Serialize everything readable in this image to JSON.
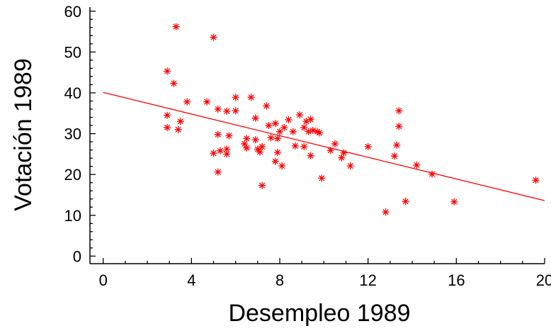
{
  "chart_data": {
    "type": "scatter",
    "title": "",
    "xlabel": "Desempleo 1989",
    "ylabel": "Votación 1989",
    "xlim": [
      -0.6,
      20
    ],
    "ylim": [
      -1.5,
      61
    ],
    "xticks": [
      0,
      4,
      8,
      12,
      16,
      20
    ],
    "yticks": [
      0,
      10,
      20,
      30,
      40,
      50,
      60
    ],
    "x_minor_step": 1,
    "y_minor_step": 2,
    "grid": false,
    "marker": "asterisk",
    "color": "#ff0000",
    "trendline": {
      "x": [
        0,
        20
      ],
      "y": [
        40.1,
        13.6
      ]
    },
    "points": [
      [
        3.3,
        56.2
      ],
      [
        5.0,
        53.6
      ],
      [
        2.9,
        45.3
      ],
      [
        3.2,
        42.3
      ],
      [
        3.8,
        37.8
      ],
      [
        4.7,
        37.8
      ],
      [
        6.0,
        38.9
      ],
      [
        6.7,
        38.9
      ],
      [
        7.4,
        36.8
      ],
      [
        5.2,
        36.0
      ],
      [
        5.6,
        35.5
      ],
      [
        6.0,
        35.6
      ],
      [
        2.9,
        34.5
      ],
      [
        6.9,
        33.8
      ],
      [
        8.4,
        33.4
      ],
      [
        8.9,
        34.6
      ],
      [
        9.2,
        33.0
      ],
      [
        9.4,
        33.5
      ],
      [
        3.5,
        33.0
      ],
      [
        2.9,
        31.5
      ],
      [
        3.4,
        31.0
      ],
      [
        7.5,
        32.0
      ],
      [
        7.8,
        32.5
      ],
      [
        8.0,
        30.5
      ],
      [
        8.2,
        31.5
      ],
      [
        8.6,
        30.5
      ],
      [
        9.1,
        31.5
      ],
      [
        9.3,
        30.5
      ],
      [
        9.5,
        30.8
      ],
      [
        9.7,
        30.5
      ],
      [
        9.8,
        30.2
      ],
      [
        5.2,
        29.8
      ],
      [
        5.7,
        29.5
      ],
      [
        6.5,
        28.8
      ],
      [
        6.9,
        28.5
      ],
      [
        7.6,
        29.0
      ],
      [
        7.9,
        28.8
      ],
      [
        6.4,
        27.5
      ],
      [
        6.5,
        26.5
      ],
      [
        7.0,
        26.2
      ],
      [
        7.2,
        26.8
      ],
      [
        8.7,
        27.0
      ],
      [
        9.1,
        26.8
      ],
      [
        10.5,
        27.5
      ],
      [
        5.0,
        25.2
      ],
      [
        5.3,
        25.8
      ],
      [
        5.6,
        25.0
      ],
      [
        5.6,
        26.2
      ],
      [
        7.1,
        25.5
      ],
      [
        7.9,
        25.4
      ],
      [
        9.4,
        24.6
      ],
      [
        10.3,
        25.9
      ],
      [
        10.8,
        24.1
      ],
      [
        10.9,
        25.3
      ],
      [
        12.0,
        26.8
      ],
      [
        7.8,
        23.2
      ],
      [
        8.1,
        22.1
      ],
      [
        11.2,
        22.1
      ],
      [
        5.2,
        20.6
      ],
      [
        9.9,
        19.1
      ],
      [
        7.2,
        17.3
      ],
      [
        13.2,
        24.5
      ],
      [
        13.3,
        27.2
      ],
      [
        13.4,
        31.8
      ],
      [
        13.4,
        35.6
      ],
      [
        14.2,
        22.3
      ],
      [
        14.9,
        20.1
      ],
      [
        13.7,
        13.4
      ],
      [
        12.8,
        10.8
      ],
      [
        15.9,
        13.3
      ],
      [
        19.6,
        18.6
      ]
    ]
  }
}
